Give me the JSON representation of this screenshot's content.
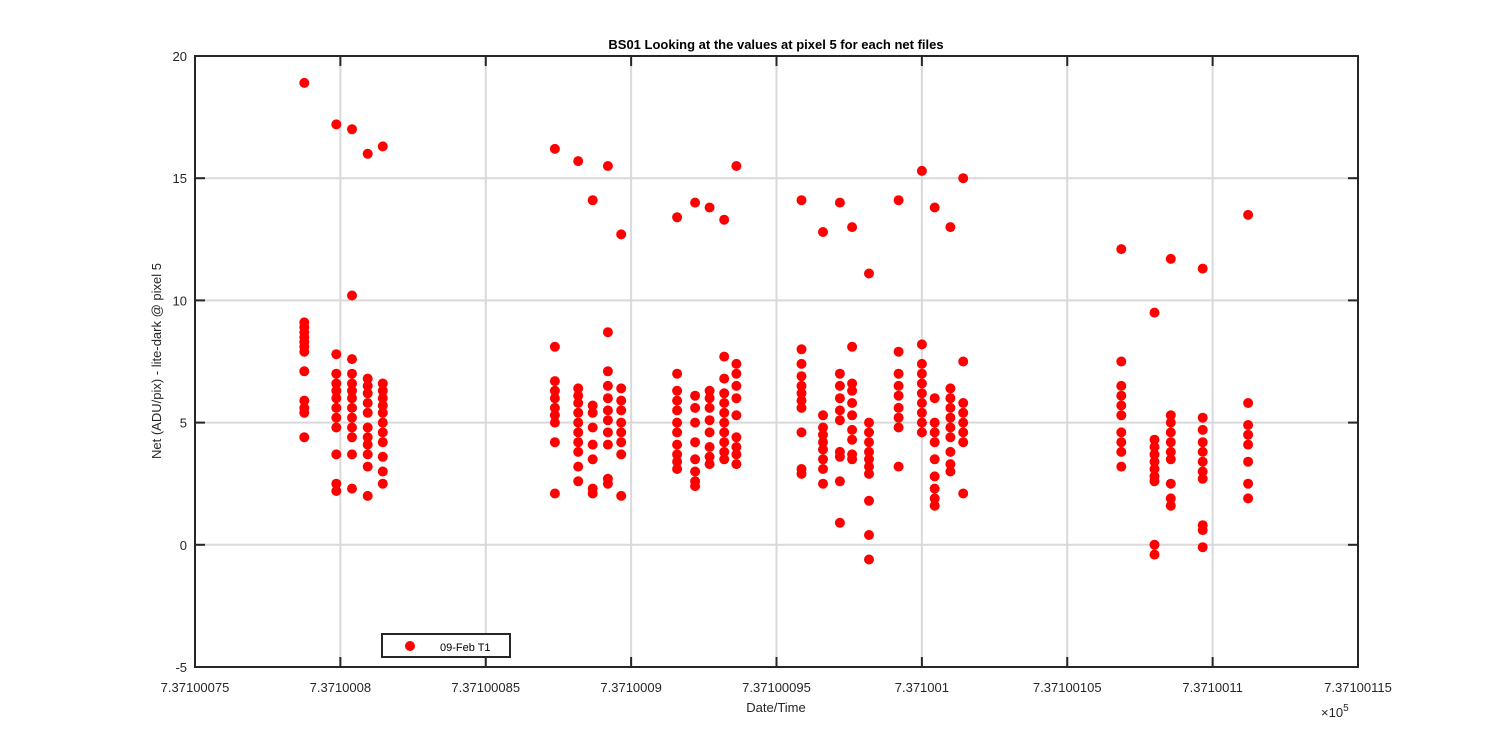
{
  "chart_data": {
    "type": "scatter",
    "title": "BS01  Looking at the values at pixel 5 for each net files",
    "xlabel": "Date/Time",
    "ylabel": "Net (ADU/pix) - lite-dark @ pixel 5",
    "x_exponent_label": "×10",
    "x_exponent_power": "5",
    "xlim": [
      7.37100075,
      7.37100115
    ],
    "ylim": [
      -5,
      20
    ],
    "x_ticks": [
      7.37100075,
      7.3710008,
      7.37100085,
      7.3710009,
      7.37100095,
      7.371001,
      7.37100105,
      7.3710011,
      7.37100115
    ],
    "x_tick_labels": [
      "7.37100075",
      "7.3710008",
      "7.37100085",
      "7.3710009",
      "7.37100095",
      "7.371001",
      "7.37100105",
      "7.3710011",
      "7.37100115"
    ],
    "y_ticks": [
      -5,
      0,
      5,
      10,
      15,
      20
    ],
    "y_tick_labels": [
      "-5",
      "0",
      "5",
      "10",
      "15",
      "20"
    ],
    "grid": true,
    "legend_position": "bottom-left",
    "marker_color": "#ff0000",
    "series": [
      {
        "name": "09-Feb T1",
        "clusters": [
          {
            "x": 7.3710007876,
            "y": [
              18.9,
              9.1,
              8.9,
              8.7,
              8.5,
              8.3,
              8.1,
              7.9,
              7.1,
              5.9,
              5.6,
              5.4,
              4.4
            ]
          },
          {
            "x": 7.3710007986,
            "y": [
              17.2,
              7.8,
              7.0,
              6.6,
              6.3,
              6.0,
              5.6,
              5.2,
              4.8,
              3.7,
              2.5,
              2.2
            ]
          },
          {
            "x": 7.371000804,
            "y": [
              17.0,
              10.2,
              7.6,
              7.0,
              6.6,
              6.3,
              6.0,
              5.6,
              5.2,
              4.8,
              4.4,
              3.7,
              2.3
            ]
          },
          {
            "x": 7.3710008094,
            "y": [
              16.0,
              6.8,
              6.5,
              6.2,
              5.8,
              5.4,
              4.8,
              4.4,
              4.1,
              3.7,
              3.2,
              2.0
            ]
          },
          {
            "x": 7.3710008146,
            "y": [
              16.3,
              6.6,
              6.3,
              6.0,
              5.7,
              5.4,
              5.0,
              4.6,
              4.2,
              3.6,
              3.0,
              2.5
            ]
          },
          {
            "x": 7.3710008738,
            "y": [
              16.2,
              8.1,
              6.7,
              6.3,
              6.0,
              5.6,
              5.3,
              5.0,
              4.2,
              2.1
            ]
          },
          {
            "x": 7.3710008818,
            "y": [
              15.7,
              6.4,
              6.1,
              5.8,
              5.4,
              5.0,
              4.6,
              4.2,
              3.8,
              3.2,
              2.6
            ]
          },
          {
            "x": 7.3710008868,
            "y": [
              14.1,
              5.7,
              5.4,
              4.8,
              4.1,
              3.5,
              2.3,
              2.1
            ]
          },
          {
            "x": 7.371000892,
            "y": [
              15.5,
              8.7,
              7.1,
              6.5,
              6.0,
              5.5,
              5.1,
              4.6,
              4.1,
              2.7,
              2.5
            ]
          },
          {
            "x": 7.3710008966,
            "y": [
              12.7,
              6.4,
              5.9,
              5.5,
              5.0,
              4.6,
              4.2,
              3.7,
              2.0
            ]
          },
          {
            "x": 7.3710009158,
            "y": [
              13.4,
              7.0,
              6.3,
              5.9,
              5.5,
              5.0,
              4.6,
              4.1,
              3.7,
              3.4,
              3.1
            ]
          },
          {
            "x": 7.371000922,
            "y": [
              14.0,
              6.1,
              5.6,
              5.0,
              4.2,
              3.5,
              3.0,
              2.6,
              2.4
            ]
          },
          {
            "x": 7.371000927,
            "y": [
              13.8,
              6.3,
              6.0,
              5.6,
              5.1,
              4.6,
              4.0,
              3.6,
              3.3
            ]
          },
          {
            "x": 7.371000932,
            "y": [
              13.3,
              7.7,
              6.8,
              6.2,
              5.8,
              5.4,
              5.0,
              4.6,
              4.2,
              3.8,
              3.5
            ]
          },
          {
            "x": 7.3710009362,
            "y": [
              15.5,
              7.4,
              7.0,
              6.5,
              6.0,
              5.3,
              4.4,
              4.0,
              3.7,
              3.3
            ]
          },
          {
            "x": 7.3710009586,
            "y": [
              14.1,
              8.0,
              7.4,
              6.9,
              6.5,
              6.2,
              5.9,
              5.6,
              4.6,
              3.1,
              2.9
            ]
          },
          {
            "x": 7.371000966,
            "y": [
              12.8,
              5.3,
              4.8,
              4.5,
              4.2,
              3.9,
              3.5,
              3.1,
              2.5
            ]
          },
          {
            "x": 7.3710009718,
            "y": [
              14.0,
              7.0,
              6.5,
              6.0,
              5.5,
              5.1,
              3.8,
              3.6,
              2.6,
              0.9
            ]
          },
          {
            "x": 7.371000976,
            "y": [
              13.0,
              8.1,
              6.6,
              6.3,
              5.8,
              5.3,
              4.7,
              4.3,
              3.7,
              3.5
            ]
          },
          {
            "x": 7.3710009818,
            "y": [
              11.1,
              5.0,
              4.6,
              4.2,
              3.8,
              3.5,
              3.2,
              2.9,
              1.8,
              0.4,
              -0.6
            ]
          },
          {
            "x": 7.371000992,
            "y": [
              14.1,
              7.9,
              7.0,
              6.5,
              6.1,
              5.6,
              5.2,
              4.8,
              3.2
            ]
          },
          {
            "x": 7.371001,
            "y": [
              15.3,
              8.2,
              7.4,
              7.0,
              6.6,
              6.2,
              5.8,
              5.4,
              5.0,
              4.6
            ]
          },
          {
            "x": 7.3710010044,
            "y": [
              13.8,
              6.0,
              5.0,
              4.6,
              4.2,
              3.5,
              2.8,
              2.3,
              1.9,
              1.6
            ]
          },
          {
            "x": 7.3710010098,
            "y": [
              13.0,
              6.4,
              6.0,
              5.6,
              5.2,
              4.8,
              4.4,
              3.8,
              3.3,
              3.0
            ]
          },
          {
            "x": 7.3710010142,
            "y": [
              15.0,
              7.5,
              5.8,
              5.4,
              5.0,
              4.6,
              4.2,
              2.1
            ]
          },
          {
            "x": 7.3710010686,
            "y": [
              12.1,
              7.5,
              6.5,
              6.1,
              5.7,
              5.3,
              4.6,
              4.2,
              3.8,
              3.2
            ]
          },
          {
            "x": 7.37100108,
            "y": [
              9.5,
              4.3,
              4.0,
              3.7,
              3.4,
              3.1,
              2.8,
              2.6,
              0.0,
              -0.4
            ]
          },
          {
            "x": 7.3710010856,
            "y": [
              11.7,
              5.3,
              5.0,
              4.6,
              4.2,
              3.8,
              3.5,
              2.5,
              1.9,
              1.6
            ]
          },
          {
            "x": 7.3710010966,
            "y": [
              11.3,
              5.2,
              4.7,
              4.2,
              3.8,
              3.4,
              3.0,
              2.7,
              0.8,
              0.6,
              -0.1
            ]
          },
          {
            "x": 7.3710011122,
            "y": [
              13.5,
              5.8,
              4.9,
              4.5,
              4.1,
              3.4,
              2.5,
              1.9
            ]
          }
        ]
      }
    ]
  }
}
